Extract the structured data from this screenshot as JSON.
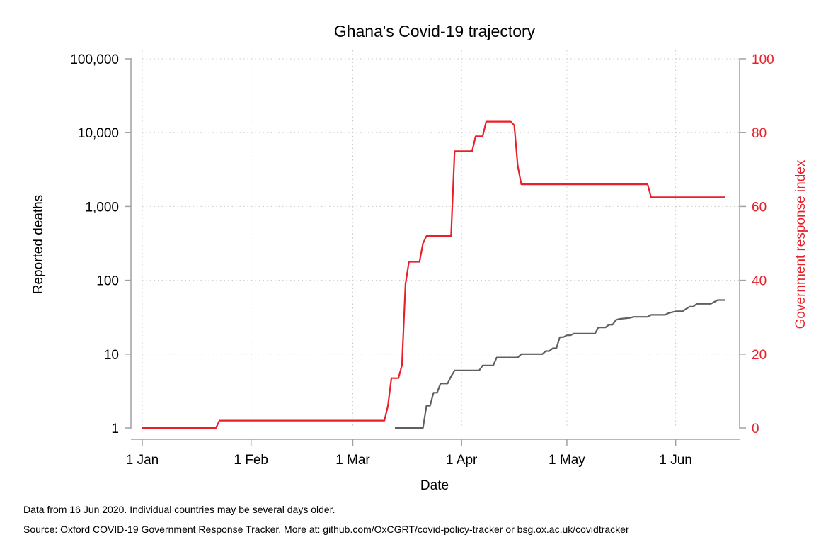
{
  "chart_data": {
    "type": "line",
    "title": "Ghana's Covid-19 trajectory",
    "xlabel": "Date",
    "ylabel_left": "Reported deaths",
    "ylabel_right": "Government response index",
    "y_left_scale": "log",
    "ylim_left": [
      1,
      100000
    ],
    "ylim_right": [
      0,
      100
    ],
    "xlim": [
      "2020-01-01",
      "2020-06-16"
    ],
    "grid": true,
    "x_ticks": [
      {
        "date": "2020-01-01",
        "label": "1 Jan"
      },
      {
        "date": "2020-02-01",
        "label": "1 Feb"
      },
      {
        "date": "2020-03-01",
        "label": "1 Mar"
      },
      {
        "date": "2020-04-01",
        "label": "1 Apr"
      },
      {
        "date": "2020-05-01",
        "label": "1 May"
      },
      {
        "date": "2020-06-01",
        "label": "1 Jun"
      }
    ],
    "y_left_ticks": [
      {
        "value": 1,
        "label": "1"
      },
      {
        "value": 10,
        "label": "10"
      },
      {
        "value": 100,
        "label": "100"
      },
      {
        "value": 1000,
        "label": "1,000"
      },
      {
        "value": 10000,
        "label": "10,000"
      },
      {
        "value": 100000,
        "label": "100,000"
      }
    ],
    "y_right_ticks": [
      {
        "value": 0,
        "label": "0"
      },
      {
        "value": 20,
        "label": "20"
      },
      {
        "value": 40,
        "label": "40"
      },
      {
        "value": 60,
        "label": "60"
      },
      {
        "value": 80,
        "label": "80"
      },
      {
        "value": 100,
        "label": "100"
      }
    ],
    "colors": {
      "deaths": "#5f5f5f",
      "response": "#e8202a",
      "right_axis_text": "#e8202a"
    },
    "series": [
      {
        "axis": "right",
        "color": "#e8202a",
        "points": [
          [
            "2020-01-01",
            0
          ],
          [
            "2020-01-22",
            0
          ],
          [
            "2020-01-23",
            2
          ],
          [
            "2020-03-10",
            2
          ],
          [
            "2020-03-11",
            6
          ],
          [
            "2020-03-12",
            13.5
          ],
          [
            "2020-03-14",
            13.5
          ],
          [
            "2020-03-15",
            17
          ],
          [
            "2020-03-16",
            39
          ],
          [
            "2020-03-17",
            45
          ],
          [
            "2020-03-20",
            45
          ],
          [
            "2020-03-21",
            50
          ],
          [
            "2020-03-22",
            52
          ],
          [
            "2020-03-29",
            52
          ],
          [
            "2020-03-30",
            75
          ],
          [
            "2020-04-04",
            75
          ],
          [
            "2020-04-05",
            79
          ],
          [
            "2020-04-07",
            79
          ],
          [
            "2020-04-08",
            83
          ],
          [
            "2020-04-15",
            83
          ],
          [
            "2020-04-16",
            82
          ],
          [
            "2020-04-17",
            71
          ],
          [
            "2020-04-18",
            66
          ],
          [
            "2020-05-24",
            66
          ],
          [
            "2020-05-25",
            62.5
          ],
          [
            "2020-06-15",
            62.5
          ]
        ]
      },
      {
        "axis": "left",
        "color": "#5f5f5f",
        "points": [
          [
            "2020-03-13",
            1
          ],
          [
            "2020-03-21",
            1
          ],
          [
            "2020-03-22",
            2
          ],
          [
            "2020-03-23",
            2
          ],
          [
            "2020-03-24",
            3
          ],
          [
            "2020-03-25",
            3
          ],
          [
            "2020-03-26",
            4
          ],
          [
            "2020-03-28",
            4
          ],
          [
            "2020-03-29",
            5
          ],
          [
            "2020-03-30",
            6
          ],
          [
            "2020-04-06",
            6
          ],
          [
            "2020-04-07",
            7
          ],
          [
            "2020-04-10",
            7
          ],
          [
            "2020-04-11",
            9
          ],
          [
            "2020-04-17",
            9
          ],
          [
            "2020-04-18",
            10
          ],
          [
            "2020-04-24",
            10
          ],
          [
            "2020-04-25",
            11
          ],
          [
            "2020-04-26",
            11
          ],
          [
            "2020-04-27",
            12
          ],
          [
            "2020-04-28",
            12
          ],
          [
            "2020-04-29",
            17
          ],
          [
            "2020-04-30",
            17
          ],
          [
            "2020-05-01",
            18
          ],
          [
            "2020-05-02",
            18
          ],
          [
            "2020-05-03",
            19
          ],
          [
            "2020-05-09",
            19
          ],
          [
            "2020-05-10",
            23
          ],
          [
            "2020-05-12",
            23
          ],
          [
            "2020-05-13",
            25
          ],
          [
            "2020-05-14",
            25
          ],
          [
            "2020-05-15",
            29
          ],
          [
            "2020-05-16",
            30
          ],
          [
            "2020-05-19",
            31
          ],
          [
            "2020-05-20",
            32
          ],
          [
            "2020-05-24",
            32
          ],
          [
            "2020-05-25",
            34
          ],
          [
            "2020-05-29",
            34
          ],
          [
            "2020-05-30",
            36
          ],
          [
            "2020-06-01",
            38
          ],
          [
            "2020-06-03",
            38
          ],
          [
            "2020-06-04",
            41
          ],
          [
            "2020-06-05",
            44
          ],
          [
            "2020-06-06",
            44
          ],
          [
            "2020-06-07",
            48
          ],
          [
            "2020-06-11",
            48
          ],
          [
            "2020-06-12",
            51
          ],
          [
            "2020-06-13",
            54
          ],
          [
            "2020-06-15",
            54
          ]
        ]
      }
    ]
  },
  "footnotes": {
    "line1": "Data from 16 Jun 2020. Individual countries may be several days older.",
    "line2": "Source: Oxford COVID-19 Government Response Tracker. More at: github.com/OxCGRT/covid-policy-tracker or bsg.ox.ac.uk/covidtracker"
  }
}
